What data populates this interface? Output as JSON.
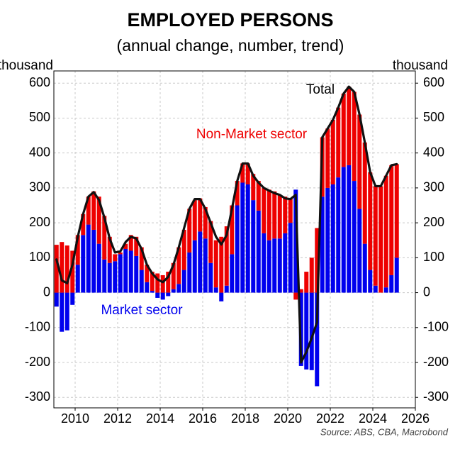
{
  "chart_data": {
    "type": "bar",
    "stacked": true,
    "title": "EMPLOYED PERSONS",
    "subtitle": "(annual change, number, trend)",
    "y_label": "thousand",
    "y2_label": "thousand",
    "source": "Source: ABS, CBA, Macrobond",
    "x": [
      2009.125,
      2009.375,
      2009.625,
      2009.875,
      2010.125,
      2010.375,
      2010.625,
      2010.875,
      2011.125,
      2011.375,
      2011.625,
      2011.875,
      2012.125,
      2012.375,
      2012.625,
      2012.875,
      2013.125,
      2013.375,
      2013.625,
      2013.875,
      2014.125,
      2014.375,
      2014.625,
      2014.875,
      2015.125,
      2015.375,
      2015.625,
      2015.875,
      2016.125,
      2016.375,
      2016.625,
      2016.875,
      2017.125,
      2017.375,
      2017.625,
      2017.875,
      2018.125,
      2018.375,
      2018.625,
      2018.875,
      2019.125,
      2019.375,
      2019.625,
      2019.875,
      2020.125,
      2020.375,
      2020.625,
      2020.875,
      2021.125,
      2021.375,
      2021.625,
      2021.875,
      2022.125,
      2022.375,
      2022.625,
      2022.875,
      2023.125,
      2023.375,
      2023.625,
      2023.875,
      2024.125,
      2024.375,
      2024.625,
      2024.875,
      2025.125
    ],
    "series": [
      {
        "name": "Market sector",
        "color": "#0000ee",
        "type": "bar",
        "values": [
          -40,
          -112,
          -108,
          -35,
          80,
          165,
          195,
          180,
          140,
          95,
          85,
          90,
          110,
          125,
          120,
          105,
          65,
          30,
          5,
          -15,
          -20,
          -10,
          10,
          25,
          65,
          115,
          150,
          175,
          155,
          85,
          15,
          -25,
          20,
          110,
          250,
          315,
          310,
          265,
          235,
          170,
          150,
          155,
          155,
          170,
          200,
          295,
          -210,
          -220,
          -222,
          -268,
          275,
          300,
          310,
          330,
          360,
          365,
          320,
          240,
          140,
          65,
          20,
          0,
          15,
          50,
          100
        ]
      },
      {
        "name": "Non-Market sector",
        "color": "#ee0000",
        "type": "bar",
        "values": [
          137,
          145,
          135,
          120,
          85,
          60,
          80,
          110,
          135,
          125,
          75,
          20,
          5,
          15,
          45,
          55,
          65,
          50,
          55,
          55,
          50,
          60,
          75,
          105,
          115,
          125,
          115,
          95,
          90,
          120,
          135,
          160,
          170,
          140,
          70,
          55,
          60,
          75,
          85,
          130,
          145,
          135,
          125,
          105,
          70,
          -20,
          10,
          60,
          100,
          185,
          170,
          170,
          185,
          200,
          210,
          225,
          255,
          270,
          290,
          280,
          285,
          305,
          320,
          315,
          268
        ]
      },
      {
        "name": "Total",
        "color": "#111111",
        "type": "line",
        "values": [
          95,
          35,
          27,
          80,
          160,
          225,
          275,
          288,
          265,
          215,
          155,
          115,
          118,
          145,
          160,
          155,
          125,
          80,
          55,
          38,
          30,
          45,
          80,
          130,
          185,
          240,
          268,
          268,
          240,
          200,
          160,
          138,
          165,
          240,
          320,
          370,
          370,
          335,
          315,
          300,
          292,
          285,
          280,
          270,
          268,
          280,
          -200,
          -170,
          -130,
          -85,
          445,
          470,
          495,
          530,
          570,
          590,
          575,
          510,
          430,
          345,
          305,
          305,
          335,
          365,
          368
        ]
      }
    ],
    "xlim": [
      2009,
      2026
    ],
    "xticks": [
      2010,
      2012,
      2014,
      2016,
      2018,
      2020,
      2022,
      2024,
      2026
    ],
    "ylim": [
      -330,
      635
    ],
    "yticks": [
      -300,
      -200,
      -100,
      0,
      100,
      200,
      300,
      400,
      500,
      600
    ],
    "y2lim": [
      -330,
      635
    ],
    "y2ticks": [
      -300,
      -200,
      -100,
      0,
      100,
      200,
      300,
      400,
      500,
      600
    ],
    "grid": true
  }
}
